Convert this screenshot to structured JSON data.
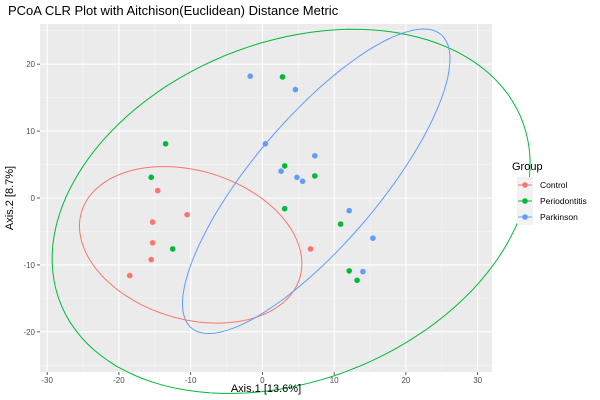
{
  "chart_data": {
    "type": "scatter",
    "title": "PCoA CLR Plot with Aitchison(Euclidean) Distance Metric",
    "xlabel": "Axis.1   [13.6%]",
    "ylabel": "Axis.2   [8.7%]",
    "xlim": [
      -31,
      32
    ],
    "ylim": [
      -26,
      26
    ],
    "xticks": [
      -30,
      -20,
      -10,
      0,
      10,
      20,
      30
    ],
    "yticks": [
      -20,
      -10,
      0,
      10,
      20
    ],
    "grid": true,
    "legend_title": "Group",
    "legend_position": "right",
    "series": [
      {
        "name": "Control",
        "color": "#f8766d",
        "points": [
          [
            -18.5,
            -11.6
          ],
          [
            -14.6,
            1.1
          ],
          [
            -15.3,
            -3.6
          ],
          [
            -15.3,
            -6.7
          ],
          [
            -15.5,
            -9.2
          ],
          [
            -10.5,
            -2.5
          ],
          [
            6.7,
            -7.6
          ]
        ],
        "ellipse": {
          "cx": -10,
          "cy": -7,
          "rx": 11,
          "ry": 16,
          "angle": 70
        }
      },
      {
        "name": "Periodontitis",
        "color": "#00ba38",
        "points": [
          [
            -13.5,
            8.1
          ],
          [
            -15.5,
            3.1
          ],
          [
            -12.5,
            -7.6
          ],
          [
            2.8,
            18.1
          ],
          [
            3.1,
            4.8
          ],
          [
            3.1,
            -1.6
          ],
          [
            7.3,
            3.3
          ],
          [
            10.9,
            -3.9
          ],
          [
            12.1,
            -10.9
          ],
          [
            13.2,
            -12.3
          ]
        ],
        "ellipse": {
          "cx": 4,
          "cy": -2,
          "rx": 35,
          "ry": 25,
          "angle": 26
        }
      },
      {
        "name": "Parkinson",
        "color": "#619cff",
        "points": [
          [
            -1.7,
            18.2
          ],
          [
            4.6,
            16.2
          ],
          [
            0.4,
            8.1
          ],
          [
            2.6,
            4.0
          ],
          [
            4.8,
            3.1
          ],
          [
            5.6,
            2.5
          ],
          [
            7.3,
            6.3
          ],
          [
            12.1,
            -1.9
          ],
          [
            14.0,
            -11.0
          ],
          [
            15.4,
            -6.0
          ]
        ],
        "ellipse": {
          "cx": 7.5,
          "cy": 2.5,
          "rx": 28,
          "ry": 9,
          "angle": 52
        }
      }
    ]
  }
}
